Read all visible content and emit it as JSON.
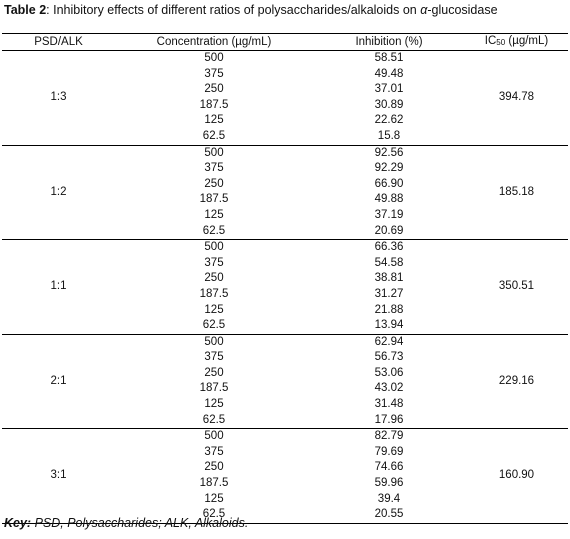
{
  "caption": {
    "label": "Table 2",
    "text_before": ": Inhibitory effects of different ratios of polysaccharides/alkaloids on ",
    "alpha": "α",
    "text_after": "-glucosidase"
  },
  "headers": {
    "ratio": "PSD/ALK",
    "concentration": "Concentration (µg/mL)",
    "inhibition": "Inhibition (%)",
    "ic_prefix": "IC",
    "ic_sub": "50",
    "ic_suffix": " (µg/mL)"
  },
  "groups": [
    {
      "ratio": "1:3",
      "ic50": "394.78",
      "rows": [
        {
          "conc": "500",
          "inhib": "58.51"
        },
        {
          "conc": "375",
          "inhib": "49.48"
        },
        {
          "conc": "250",
          "inhib": "37.01"
        },
        {
          "conc": "187.5",
          "inhib": "30.89"
        },
        {
          "conc": "125",
          "inhib": "22.62"
        },
        {
          "conc": "62.5",
          "inhib": "15.8"
        }
      ]
    },
    {
      "ratio": "1:2",
      "ic50": "185.18",
      "rows": [
        {
          "conc": "500",
          "inhib": "92.56"
        },
        {
          "conc": "375",
          "inhib": "92.29"
        },
        {
          "conc": "250",
          "inhib": "66.90"
        },
        {
          "conc": "187.5",
          "inhib": "49.88"
        },
        {
          "conc": "125",
          "inhib": "37.19"
        },
        {
          "conc": "62.5",
          "inhib": "20.69"
        }
      ]
    },
    {
      "ratio": "1:1",
      "ic50": "350.51",
      "rows": [
        {
          "conc": "500",
          "inhib": "66.36"
        },
        {
          "conc": "375",
          "inhib": "54.58"
        },
        {
          "conc": "250",
          "inhib": "38.81"
        },
        {
          "conc": "187.5",
          "inhib": "31.27"
        },
        {
          "conc": "125",
          "inhib": "21.88"
        },
        {
          "conc": "62.5",
          "inhib": "13.94"
        }
      ]
    },
    {
      "ratio": "2:1",
      "ic50": "229.16",
      "rows": [
        {
          "conc": "500",
          "inhib": "62.94"
        },
        {
          "conc": "375",
          "inhib": "56.73"
        },
        {
          "conc": "250",
          "inhib": "53.06"
        },
        {
          "conc": "187.5",
          "inhib": "43.02"
        },
        {
          "conc": "125",
          "inhib": "31.48"
        },
        {
          "conc": "62.5",
          "inhib": "17.96"
        }
      ]
    },
    {
      "ratio": "3:1",
      "ic50": "160.90",
      "rows": [
        {
          "conc": "500",
          "inhib": "82.79"
        },
        {
          "conc": "375",
          "inhib": "79.69"
        },
        {
          "conc": "250",
          "inhib": "74.66"
        },
        {
          "conc": "187.5",
          "inhib": "59.96"
        },
        {
          "conc": "125",
          "inhib": "39.4"
        },
        {
          "conc": "62.5",
          "inhib": "20.55"
        }
      ]
    }
  ],
  "key": {
    "label": "Key:",
    "text": " PSD, Polysaccharides; ALK, Alkaloids."
  }
}
